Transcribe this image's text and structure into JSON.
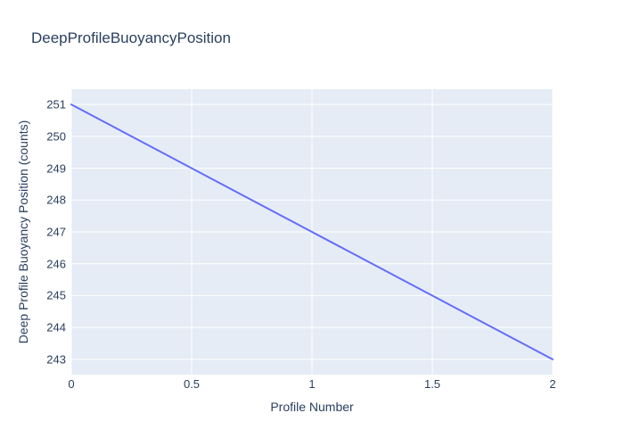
{
  "chart_data": {
    "type": "line",
    "title": "DeepProfileBuoyancyPosition",
    "xlabel": "Profile Number",
    "ylabel": "Deep Profile Buoyancy Position (counts)",
    "x": [
      0,
      2
    ],
    "y": [
      251,
      243
    ],
    "xlim": [
      0,
      2
    ],
    "ylim": [
      242.52,
      251.48
    ],
    "xticks": [
      0,
      0.5,
      1,
      1.5,
      2
    ],
    "xtick_labels": [
      "0",
      "0.5",
      "1",
      "1.5",
      "2"
    ],
    "yticks": [
      243,
      244,
      245,
      246,
      247,
      248,
      249,
      250,
      251
    ],
    "ytick_labels": [
      "243",
      "244",
      "245",
      "246",
      "247",
      "248",
      "249",
      "250",
      "251"
    ],
    "grid": true,
    "legend": false,
    "colors": {
      "line": "#636efa",
      "plot_background": "#e5ecf6",
      "gridline": "#ffffff",
      "text": "#2a3f5f",
      "paper_background": "#ffffff"
    }
  }
}
